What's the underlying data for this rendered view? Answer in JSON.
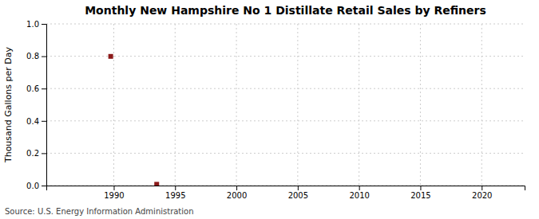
{
  "chart_data": {
    "type": "scatter",
    "title": "Monthly New Hampshire No 1 Distillate Retail Sales by Refiners",
    "ylabel": "Thousand Gallons per Day",
    "annotations": [
      "Source: U.S. Energy Information Administration"
    ],
    "x": [
      1989.75,
      1993.5
    ],
    "values": [
      0.799,
      0.008
    ],
    "color": "#8b1a1a",
    "marker": "square",
    "xlim": [
      1984.5,
      2023.5
    ],
    "ylim": [
      0.0,
      1.0
    ],
    "xticks": [
      1990,
      1995,
      2000,
      2005,
      2010,
      2015,
      2020
    ],
    "yticks": [
      {
        "value": 0.0,
        "label": "0.0"
      },
      0.2,
      0.4,
      0.6,
      0.8,
      {
        "value": 1.0,
        "label": "1.0"
      }
    ],
    "grid": true
  }
}
